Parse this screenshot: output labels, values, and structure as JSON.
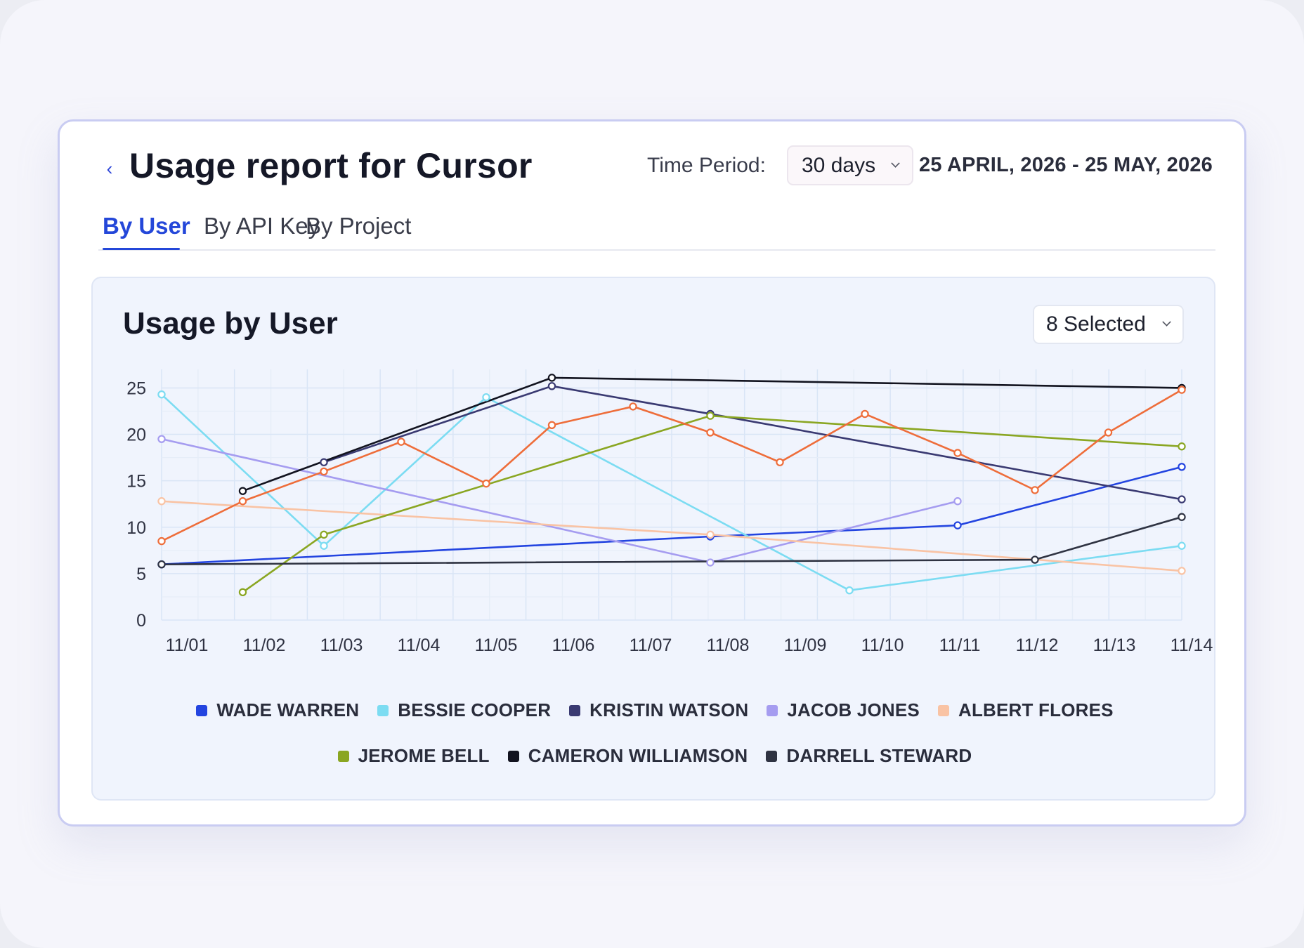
{
  "header": {
    "back_icon": "chevron-left-icon",
    "title": "Usage report for Cursor",
    "time_period_label": "Time Period:",
    "time_period_value": "30 days",
    "date_range": "25 APRIL, 2026 - 25 MAY, 2026"
  },
  "tabs": [
    {
      "label": "By User",
      "active": true
    },
    {
      "label": "By API Key",
      "active": false
    },
    {
      "label": "By Project",
      "active": false
    }
  ],
  "panel": {
    "title": "Usage by User",
    "selector_value": "8 Selected"
  },
  "colors": {
    "accent": "#2447d9"
  },
  "chart_data": {
    "type": "line",
    "x_ticks": [
      "11/01",
      "11/02",
      "11/03",
      "11/04",
      "11/05",
      "11/06",
      "11/07",
      "11/08",
      "11/09",
      "11/10",
      "11/11",
      "11/12",
      "11/13",
      "11/14"
    ],
    "y_ticks": [
      0,
      5,
      10,
      15,
      20,
      25
    ],
    "ylim": [
      0,
      27
    ],
    "grid": true,
    "legend_position": "bottom",
    "series": [
      {
        "name": "WADE WARREN",
        "color": "#2344e0",
        "points": [
          [
            1,
            6
          ],
          [
            8.1,
            9
          ],
          [
            11.3,
            10.2
          ],
          [
            14.2,
            16.5
          ]
        ]
      },
      {
        "name": "BESSIE COOPER",
        "color": "#7cdcf2",
        "points": [
          [
            1,
            24.3
          ],
          [
            3.1,
            8
          ],
          [
            5.2,
            24.0
          ],
          [
            9.9,
            3.2
          ],
          [
            14.2,
            8
          ]
        ]
      },
      {
        "name": "KRISTIN WATSON",
        "color": "#3a3a72",
        "points": [
          [
            3.1,
            17
          ],
          [
            6.05,
            25.2
          ],
          [
            8.1,
            22.2
          ],
          [
            14.2,
            13
          ]
        ]
      },
      {
        "name": "JACOB JONES",
        "color": "#a59cf0",
        "points": [
          [
            1,
            19.5
          ],
          [
            8.1,
            6.2
          ],
          [
            11.3,
            12.8
          ]
        ]
      },
      {
        "name": "ALBERT FLORES",
        "color": "#f9c3a4",
        "points": [
          [
            1,
            12.8
          ],
          [
            8.1,
            9.2
          ],
          [
            14.2,
            5.3
          ]
        ]
      },
      {
        "name": "JEROME BELL",
        "color": "#8aa622",
        "points": [
          [
            2.05,
            3
          ],
          [
            3.1,
            9.2
          ],
          [
            8.1,
            22
          ],
          [
            14.2,
            18.7
          ]
        ]
      },
      {
        "name": "CAMERON WILLIAMSON",
        "color": "#12131f",
        "points": [
          [
            2.05,
            13.9
          ],
          [
            6.05,
            26.1
          ],
          [
            14.2,
            25
          ]
        ]
      },
      {
        "name": "DARRELL STEWARD",
        "color": "#2f3342",
        "points": [
          [
            1,
            6
          ],
          [
            12.3,
            6.5
          ],
          [
            14.2,
            11.1
          ]
        ]
      },
      {
        "name": "",
        "color": "#ee6d3a",
        "points": [
          [
            1,
            8.5
          ],
          [
            2.05,
            12.8
          ],
          [
            3.1,
            16
          ],
          [
            4.1,
            19.2
          ],
          [
            5.2,
            14.7
          ],
          [
            6.05,
            21
          ],
          [
            7.1,
            23
          ],
          [
            8.1,
            20.2
          ],
          [
            9.0,
            17
          ],
          [
            10.1,
            22.2
          ],
          [
            11.3,
            18
          ],
          [
            12.3,
            14
          ],
          [
            13.25,
            20.2
          ],
          [
            14.2,
            24.8
          ]
        ]
      }
    ]
  }
}
